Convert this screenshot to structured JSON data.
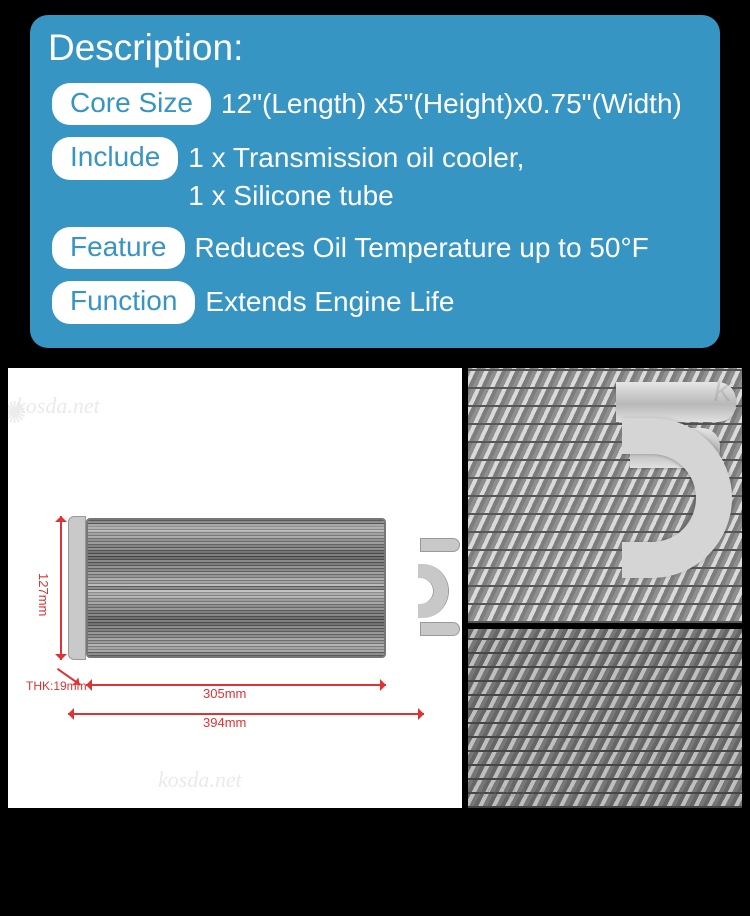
{
  "panel": {
    "bg_color": "#3795c3",
    "text_color": "#ffffff",
    "pill_bg": "#ffffff",
    "pill_text": "#3795c3",
    "title": "Description:",
    "rows": [
      {
        "label": "Core Size",
        "value": "12\"(Length) x5\"(Height)x0.75\"(Width)"
      },
      {
        "label": "Include",
        "lines": [
          "1 x Transmission oil cooler,",
          "1 x Silicone tube"
        ]
      },
      {
        "label": "Feature",
        "value": "Reduces Oil Temperature up to 50°F"
      },
      {
        "label": "Function",
        "value": "Extends Engine Life"
      }
    ]
  },
  "diagram": {
    "watermark": "kosda.net",
    "height_label": "127mm",
    "width_inner_label": "305mm",
    "width_outer_label": "394mm",
    "thk_label": "THK:19mm",
    "dim_color": "#d33"
  }
}
